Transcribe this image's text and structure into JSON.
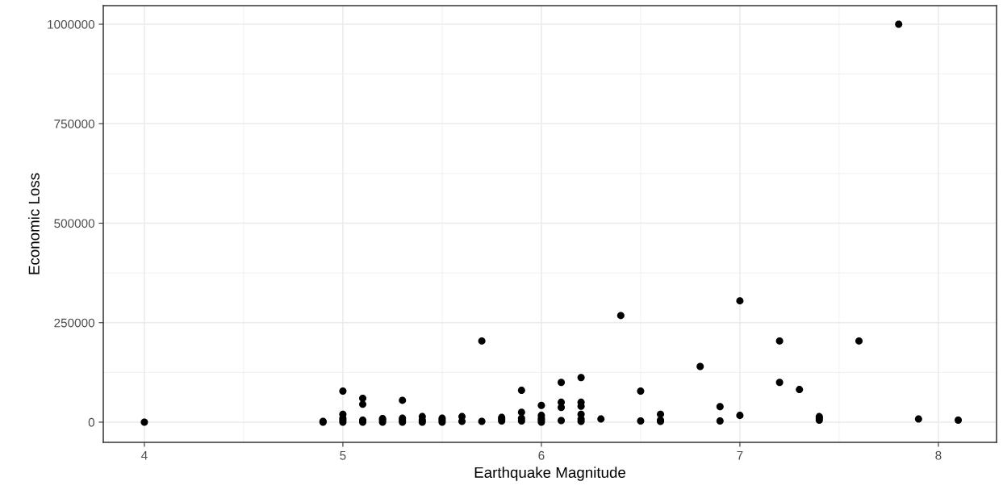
{
  "chart_data": {
    "type": "scatter",
    "xlabel": "Earthquake Magnitude",
    "ylabel": "Economic Loss",
    "color": "#000000",
    "marker": "circle",
    "grid": true,
    "x": [
      4,
      4.9,
      4.9,
      5,
      5,
      5,
      5,
      5,
      5.1,
      5.1,
      5.1,
      5.1,
      5.2,
      5.2,
      5.2,
      5.3,
      5.3,
      5.3,
      5.3,
      5.4,
      5.4,
      5.4,
      5.5,
      5.5,
      5.5,
      5.6,
      5.6,
      5.7,
      5.7,
      5.8,
      5.8,
      5.8,
      5.9,
      5.9,
      5.9,
      5.9,
      6,
      6,
      6,
      6,
      6,
      6.1,
      6.1,
      6.1,
      6.1,
      6.2,
      6.2,
      6.2,
      6.2,
      6.2,
      6.2,
      6.3,
      6.4,
      6.5,
      6.5,
      6.6,
      6.6,
      6.6,
      6.8,
      6.9,
      6.9,
      7,
      7,
      7.2,
      7.2,
      7.3,
      7.4,
      7.4,
      7.4,
      7.6,
      7.8,
      7.9,
      8.1
    ],
    "values": [
      0,
      0,
      2000,
      0,
      5000,
      10000,
      20000,
      78000,
      0,
      5000,
      45000,
      60000,
      0,
      5000,
      9000,
      0,
      5000,
      10000,
      55000,
      0,
      5000,
      14000,
      0,
      5000,
      10000,
      2000,
      14000,
      2000,
      204000,
      3000,
      8000,
      12000,
      3000,
      10000,
      25000,
      80000,
      0,
      5000,
      10000,
      17000,
      42000,
      4000,
      37000,
      50000,
      100000,
      2000,
      8000,
      20000,
      40000,
      50000,
      112000,
      8000,
      268000,
      3000,
      78000,
      2000,
      5000,
      20000,
      140000,
      3000,
      39000,
      17000,
      305000,
      100000,
      204000,
      82000,
      5000,
      10000,
      14000,
      204000,
      1000000,
      8000,
      5000
    ],
    "xlim": [
      3.793,
      8.293
    ],
    "xticks": [
      4,
      5,
      6,
      7,
      8
    ],
    "ylim": [
      -50700,
      1046700
    ],
    "yticks": [
      0,
      250000,
      500000,
      750000,
      1000000
    ]
  }
}
